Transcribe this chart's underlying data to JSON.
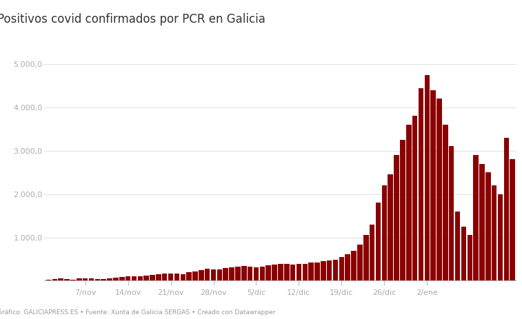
{
  "title": "Positivos covid confirmados por PCR en Galicia",
  "footer": "Gráfico: GALICIAPRESS.ES • Fuente: Xunta de Galicia SERGAS • Creado con Datawrapper",
  "bar_color": "#8B0000",
  "background_color": "#ffffff",
  "tick_label_color": "#aaaaaa",
  "title_color": "#333333",
  "ylim": [
    0,
    5300
  ],
  "ytick_step": 1000,
  "x_tick_labels": [
    "7/nov",
    "14/nov",
    "21/nov",
    "28/nov",
    "5/dic",
    "12/dic",
    "19/dic",
    "26/dic",
    "2/ene"
  ],
  "values": [
    20,
    40,
    50,
    40,
    30,
    50,
    55,
    50,
    45,
    45,
    55,
    75,
    90,
    110,
    105,
    100,
    120,
    140,
    150,
    160,
    170,
    160,
    155,
    190,
    220,
    240,
    280,
    265,
    255,
    290,
    310,
    330,
    345,
    325,
    310,
    330,
    360,
    375,
    385,
    395,
    370,
    385,
    395,
    415,
    425,
    445,
    465,
    490,
    540,
    610,
    690,
    830,
    1050,
    1300,
    1800,
    2200,
    2450,
    2900,
    3250,
    3600,
    3800,
    4450,
    4750,
    4400,
    4200,
    3600,
    3100,
    1600,
    1250,
    1050,
    2900,
    2700,
    2500,
    2200,
    2000,
    3300,
    2800
  ],
  "x_tick_positions": [
    6,
    13,
    20,
    27,
    34,
    41,
    48,
    55,
    62
  ]
}
